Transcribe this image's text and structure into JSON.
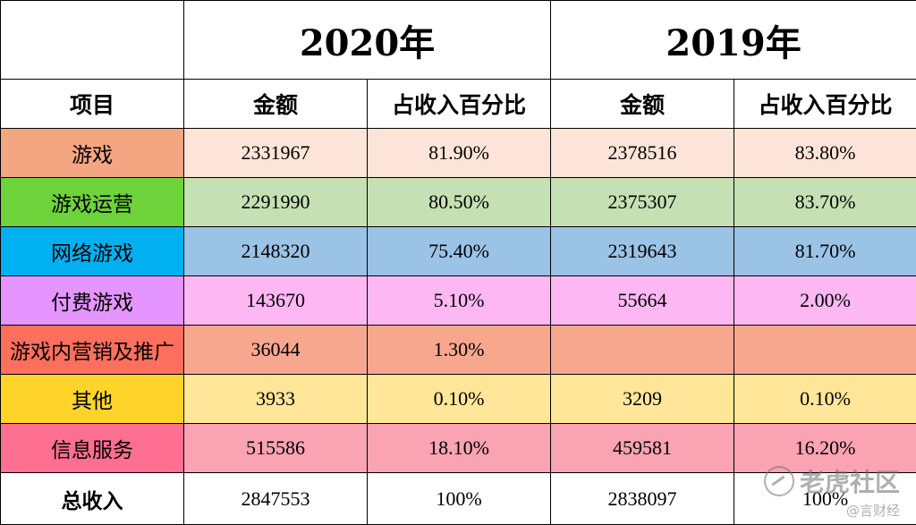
{
  "colors": {
    "border": "#000000",
    "header_bg": "#ffffff",
    "row_label_colors": [
      "#f4a582",
      "#6ed33a",
      "#00b0f0",
      "#e495ff",
      "#ff6f5e",
      "#ffd42a",
      "#ff6f91",
      "#ffffff"
    ],
    "row_value_colors": [
      "#fde4d8",
      "#c5e0b3",
      "#9ac3e6",
      "#fdb8f3",
      "#f8a78f",
      "#ffe699",
      "#f9a3b3",
      "#ffffff"
    ]
  },
  "years": [
    "2020年",
    "2019年"
  ],
  "headers": {
    "item": "项目",
    "amount_2020": "金额",
    "pct_2020": "占收入百分比",
    "amount_2019": "金额",
    "pct_2019": "占收入百分比"
  },
  "rows": [
    {
      "label": "游戏",
      "amt2020": "2331967",
      "pct2020": "81.90%",
      "amt2019": "2378516",
      "pct2019": "83.80%"
    },
    {
      "label": "游戏运营",
      "amt2020": "2291990",
      "pct2020": "80.50%",
      "amt2019": "2375307",
      "pct2019": "83.70%"
    },
    {
      "label": "网络游戏",
      "amt2020": "2148320",
      "pct2020": "75.40%",
      "amt2019": "2319643",
      "pct2019": "81.70%"
    },
    {
      "label": "付费游戏",
      "amt2020": "143670",
      "pct2020": "5.10%",
      "amt2019": "55664",
      "pct2019": "2.00%"
    },
    {
      "label": "游戏内营销及推广",
      "amt2020": "36044",
      "pct2020": "1.30%",
      "amt2019": "",
      "pct2019": ""
    },
    {
      "label": "其他",
      "amt2020": "3933",
      "pct2020": "0.10%",
      "amt2019": "3209",
      "pct2019": "0.10%"
    },
    {
      "label": "信息服务",
      "amt2020": "515586",
      "pct2020": "18.10%",
      "amt2019": "459581",
      "pct2019": "16.20%"
    },
    {
      "label": "总收入",
      "amt2020": "2847553",
      "pct2020": "100%",
      "amt2019": "2838097",
      "pct2019": "100%"
    }
  ],
  "watermark": {
    "main": "老虎社区",
    "sub": "@言财经"
  }
}
